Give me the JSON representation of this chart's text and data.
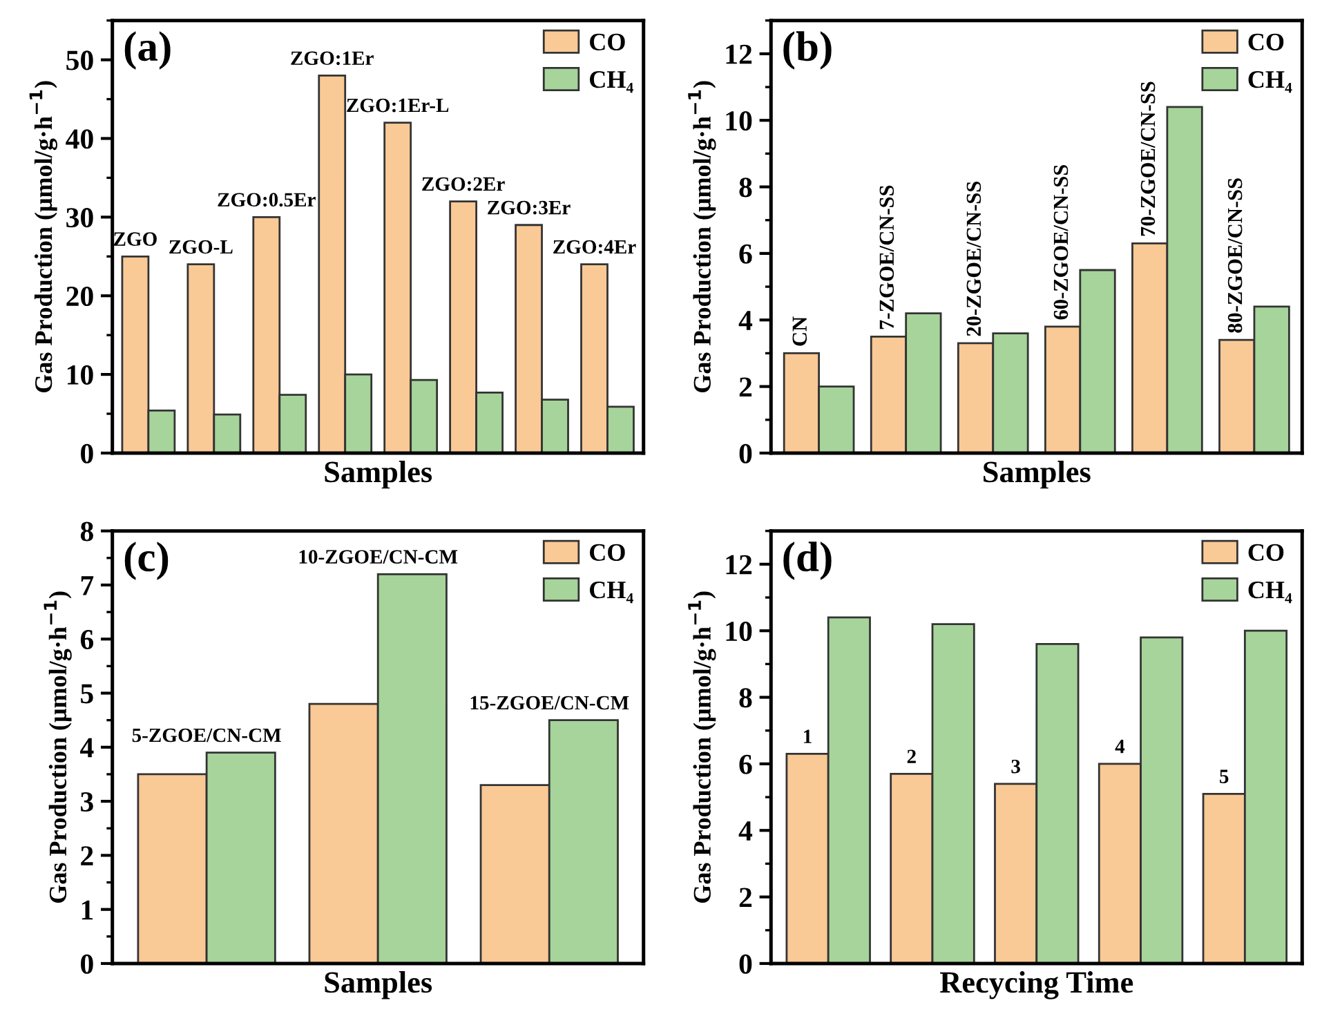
{
  "chart_data": [
    {
      "type": "bar",
      "title": "(a)",
      "xlabel": "Samples",
      "ylabel": "Gas Production (μmol/g·h$^{−1}$)",
      "categories": [
        "ZGO",
        "ZGO-L",
        "ZGO:0.5Er",
        "ZGO:1Er",
        "ZGO:1Er-L",
        "ZGO:2Er",
        "ZGO:3Er",
        "ZGO:4Er"
      ],
      "series": [
        {
          "name": "CO",
          "color": "#f9c996",
          "values": [
            25,
            24,
            30,
            48,
            42,
            32,
            29,
            24
          ]
        },
        {
          "name": "CH₄",
          "color": "#a6d49a",
          "values": [
            5.4,
            4.9,
            7.4,
            10,
            9.3,
            7.7,
            6.8,
            5.9
          ]
        }
      ],
      "ylim": [
        0,
        55
      ],
      "yticks": [
        0,
        10,
        20,
        30,
        40,
        50
      ],
      "legend": "top right",
      "tick_labels": "y"
    },
    {
      "type": "bar",
      "title": "(b)",
      "xlabel": "Samples",
      "ylabel": "Gas Production (μmol/g·h$^{−1}$)",
      "categories": [
        "CN",
        "7-ZGOE/CN-SS",
        "20-ZGOE/CN-SS",
        "60-ZGOE/CN-SS",
        "70-ZGOE/CN-SS",
        "80-ZGOE/CN-SS"
      ],
      "series": [
        {
          "name": "CO",
          "color": "#f9c996",
          "values": [
            3,
            3.5,
            3.3,
            3.8,
            6.3,
            3.4
          ]
        },
        {
          "name": "CH₄",
          "color": "#a6d49a",
          "values": [
            2,
            4.2,
            3.6,
            5.5,
            10.4,
            4.4
          ]
        }
      ],
      "ylim": [
        0,
        13
      ],
      "yticks": [
        0,
        2,
        4,
        6,
        8,
        10,
        12
      ],
      "legend": "top right",
      "tick_labels": "y"
    },
    {
      "type": "bar",
      "title": "(c)",
      "xlabel": "Samples",
      "ylabel": "Gas Production (μmol/g·h$^{−1}$)",
      "categories": [
        "5-ZGOE/CN-CM",
        "10-ZGOE/CN-CM",
        "15-ZGOE/CN-CM"
      ],
      "series": [
        {
          "name": "CO",
          "color": "#f9c996",
          "values": [
            3.5,
            4.8,
            3.3
          ]
        },
        {
          "name": "CH₄",
          "color": "#a6d49a",
          "values": [
            3.9,
            7.2,
            4.5
          ]
        }
      ],
      "ylim": [
        0,
        8
      ],
      "yticks": [
        0,
        1,
        2,
        3,
        4,
        5,
        6,
        7,
        8
      ],
      "legend": "top right",
      "tick_labels": "y"
    },
    {
      "type": "bar",
      "title": "(d)",
      "xlabel": "Recycing Time",
      "ylabel": "Gas Production (μmol/g·h$^{−1}$)",
      "categories": [
        "1",
        "2",
        "3",
        "4",
        "5"
      ],
      "series": [
        {
          "name": "CO",
          "color": "#f9c996",
          "values": [
            6.3,
            5.7,
            5.4,
            6.0,
            5.1
          ]
        },
        {
          "name": "CH₄",
          "color": "#a6d49a",
          "values": [
            10.4,
            10.2,
            9.6,
            9.8,
            10.0
          ]
        }
      ],
      "ylim": [
        0,
        13
      ],
      "yticks": [
        0,
        2,
        4,
        6,
        8,
        10,
        12
      ],
      "legend": "top right",
      "tick_labels": "y"
    }
  ]
}
